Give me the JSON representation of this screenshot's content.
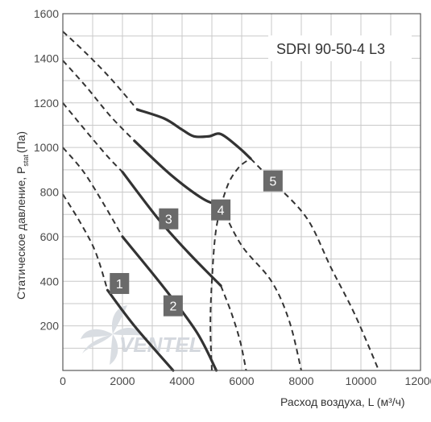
{
  "chart_data": {
    "type": "line",
    "title": "SDRI 90-50-4 L3",
    "xlabel": "Расход воздуха, L (м³/ч)",
    "ylabel_main": "Статическое давление, P",
    "ylabel_sub": "stat",
    "ylabel_unit": "(Па)",
    "xlim": [
      0,
      12000
    ],
    "ylim": [
      0,
      1600
    ],
    "xticks": [
      "0",
      "2000",
      "4000",
      "6000",
      "8000",
      "10000",
      "12000"
    ],
    "yticks": [
      "200",
      "400",
      "600",
      "800",
      "1000",
      "1200",
      "1400",
      "1600"
    ],
    "grid": true,
    "watermark": "VENTEL",
    "series": [
      {
        "name": "1",
        "style": "solid",
        "points": [
          [
            1500,
            360
          ],
          [
            2400,
            200
          ],
          [
            3700,
            0
          ]
        ]
      },
      {
        "name": "2",
        "style": "solid",
        "points": [
          [
            2000,
            600
          ],
          [
            3400,
            370
          ],
          [
            4500,
            170
          ],
          [
            5150,
            0
          ]
        ]
      },
      {
        "name": "3",
        "style": "solid",
        "points": [
          [
            2000,
            890
          ],
          [
            3200,
            680
          ],
          [
            4200,
            530
          ],
          [
            5300,
            380
          ]
        ]
      },
      {
        "name": "4",
        "style": "solid",
        "points": [
          [
            2400,
            1030
          ],
          [
            3600,
            880
          ],
          [
            4700,
            770
          ],
          [
            5300,
            740
          ]
        ]
      },
      {
        "name": "5",
        "style": "solid",
        "points": [
          [
            2500,
            1170
          ],
          [
            3400,
            1130
          ],
          [
            4000,
            1080
          ],
          [
            4400,
            1050
          ],
          [
            4900,
            1050
          ],
          [
            5300,
            1060
          ],
          [
            5900,
            1000
          ],
          [
            6300,
            950
          ]
        ]
      },
      {
        "name": "1-ext",
        "style": "dashed",
        "points": [
          [
            0,
            790
          ],
          [
            600,
            660
          ],
          [
            1100,
            530
          ],
          [
            1500,
            360
          ]
        ]
      },
      {
        "name": "2-ext",
        "style": "dashed",
        "points": [
          [
            0,
            1000
          ],
          [
            700,
            890
          ],
          [
            1400,
            740
          ],
          [
            2000,
            600
          ]
        ]
      },
      {
        "name": "3-ext",
        "style": "dashed",
        "points": [
          [
            0,
            1200
          ],
          [
            800,
            1070
          ],
          [
            1500,
            960
          ],
          [
            2000,
            890
          ]
        ]
      },
      {
        "name": "3-tail",
        "style": "dashed",
        "points": [
          [
            5300,
            380
          ],
          [
            5650,
            260
          ],
          [
            5950,
            130
          ],
          [
            6150,
            0
          ]
        ]
      },
      {
        "name": "4-ext",
        "style": "dashed",
        "points": [
          [
            0,
            1390
          ],
          [
            800,
            1270
          ],
          [
            1600,
            1140
          ],
          [
            2400,
            1030
          ]
        ]
      },
      {
        "name": "4-tail",
        "style": "dashed",
        "points": [
          [
            5300,
            740
          ],
          [
            6000,
            560
          ],
          [
            7000,
            400
          ],
          [
            7600,
            220
          ],
          [
            8000,
            0
          ]
        ]
      },
      {
        "name": "5-ext",
        "style": "dashed",
        "points": [
          [
            0,
            1520
          ],
          [
            800,
            1420
          ],
          [
            1600,
            1310
          ],
          [
            2500,
            1170
          ]
        ]
      },
      {
        "name": "5-tail",
        "style": "dashed",
        "points": [
          [
            6300,
            950
          ],
          [
            7100,
            840
          ],
          [
            8200,
            680
          ],
          [
            9000,
            460
          ],
          [
            9800,
            250
          ],
          [
            10600,
            0
          ]
        ]
      },
      {
        "name": "boundary",
        "style": "dashed",
        "points": [
          [
            5000,
            0
          ],
          [
            4950,
            200
          ],
          [
            5000,
            400
          ],
          [
            5150,
            640
          ],
          [
            5500,
            820
          ],
          [
            5900,
            910
          ],
          [
            6300,
            950
          ]
        ]
      }
    ],
    "badges": [
      {
        "label": "1",
        "x": 1900,
        "y": 390
      },
      {
        "label": "2",
        "x": 3700,
        "y": 290
      },
      {
        "label": "3",
        "x": 3550,
        "y": 680
      },
      {
        "label": "4",
        "x": 5300,
        "y": 720
      },
      {
        "label": "5",
        "x": 7050,
        "y": 850
      }
    ]
  }
}
